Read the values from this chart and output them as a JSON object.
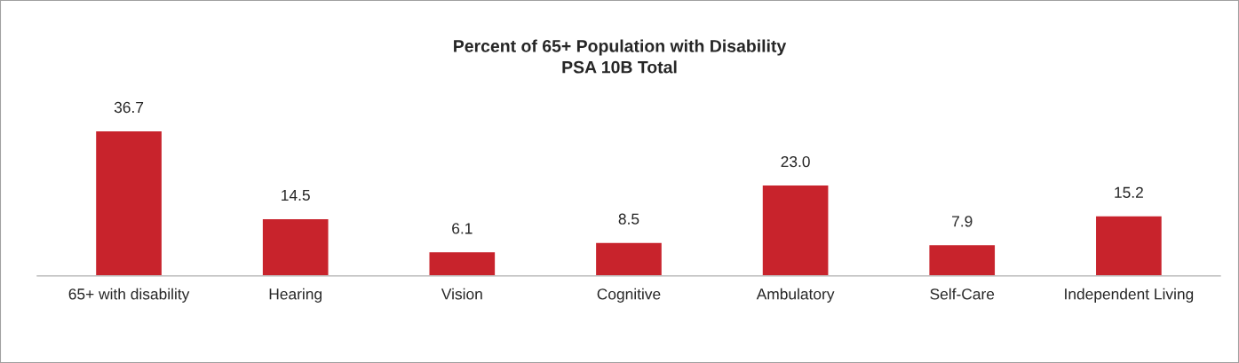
{
  "chart_data": {
    "type": "bar",
    "title": "Percent of 65+ Population with Disability\nPSA 10B Total",
    "categories": [
      "65+ with disability",
      "Hearing",
      "Vision",
      "Cognitive",
      "Ambulatory",
      "Self-Care",
      "Independent Living"
    ],
    "values": [
      36.7,
      14.5,
      6.1,
      8.5,
      23.0,
      7.9,
      15.2
    ],
    "value_labels": [
      "36.7",
      "14.5",
      "6.1",
      "8.5",
      "23.0",
      "7.9",
      "15.2"
    ],
    "color": "#c8232c"
  }
}
